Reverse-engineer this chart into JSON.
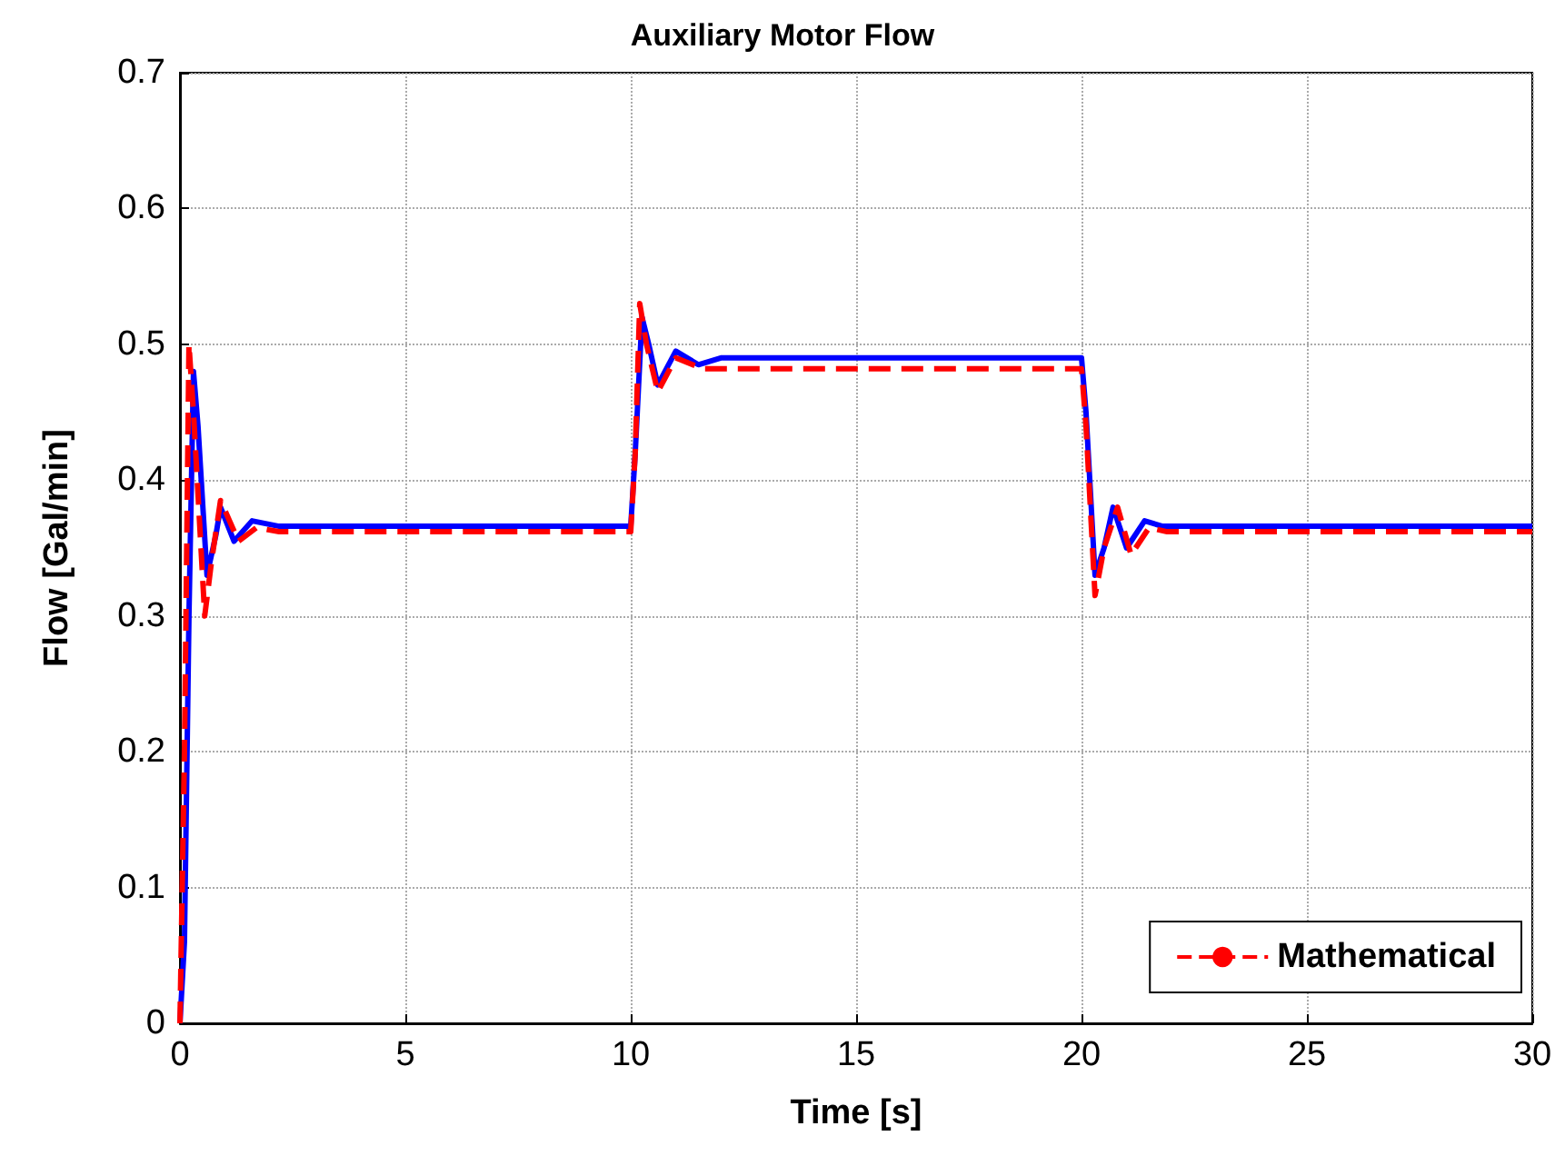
{
  "chart_data": {
    "type": "line",
    "title": "Auxiliary Motor Flow",
    "xlabel": "Time [s]",
    "ylabel": "Flow [Gal/min]",
    "xlim": [
      0,
      30
    ],
    "xticks": [
      0,
      5,
      10,
      15,
      20,
      25,
      30
    ],
    "ylim": [
      0,
      0.7
    ],
    "yticks": [
      0,
      0.1,
      0.2,
      0.3,
      0.4,
      0.5,
      0.6,
      0.7
    ],
    "grid": true,
    "legend": "bottom right",
    "marker": "none",
    "series": [
      {
        "color": "#0000ff",
        "line_style": "solid",
        "x": [
          0,
          0.1,
          0.2,
          0.3,
          0.4,
          0.6,
          0.8,
          0.9,
          1.2,
          1.6,
          2.2,
          10,
          10.1,
          10.25,
          10.4,
          10.6,
          11,
          11.5,
          12,
          20,
          20.1,
          20.3,
          20.5,
          20.7,
          21,
          21.4,
          21.8,
          30
        ],
        "values": [
          0,
          0.06,
          0.3,
          0.48,
          0.44,
          0.33,
          0.36,
          0.38,
          0.355,
          0.37,
          0.366,
          0.366,
          0.42,
          0.52,
          0.5,
          0.47,
          0.495,
          0.485,
          0.49,
          0.49,
          0.45,
          0.33,
          0.35,
          0.38,
          0.35,
          0.37,
          0.366,
          0.366
        ]
      },
      {
        "name": "Mathematical",
        "color": "#ff0000",
        "line_style": "dashed",
        "x": [
          0,
          0.1,
          0.2,
          0.3,
          0.55,
          0.7,
          0.9,
          1.3,
          1.7,
          2.2,
          10,
          10.1,
          10.2,
          10.35,
          10.6,
          11,
          11.6,
          20,
          20.1,
          20.3,
          20.5,
          20.8,
          21.1,
          21.5,
          21.9,
          30
        ],
        "values": [
          0,
          0.2,
          0.5,
          0.45,
          0.3,
          0.34,
          0.385,
          0.355,
          0.365,
          0.362,
          0.362,
          0.42,
          0.53,
          0.5,
          0.465,
          0.49,
          0.482,
          0.482,
          0.44,
          0.315,
          0.35,
          0.38,
          0.345,
          0.365,
          0.362,
          0.362
        ]
      }
    ]
  }
}
